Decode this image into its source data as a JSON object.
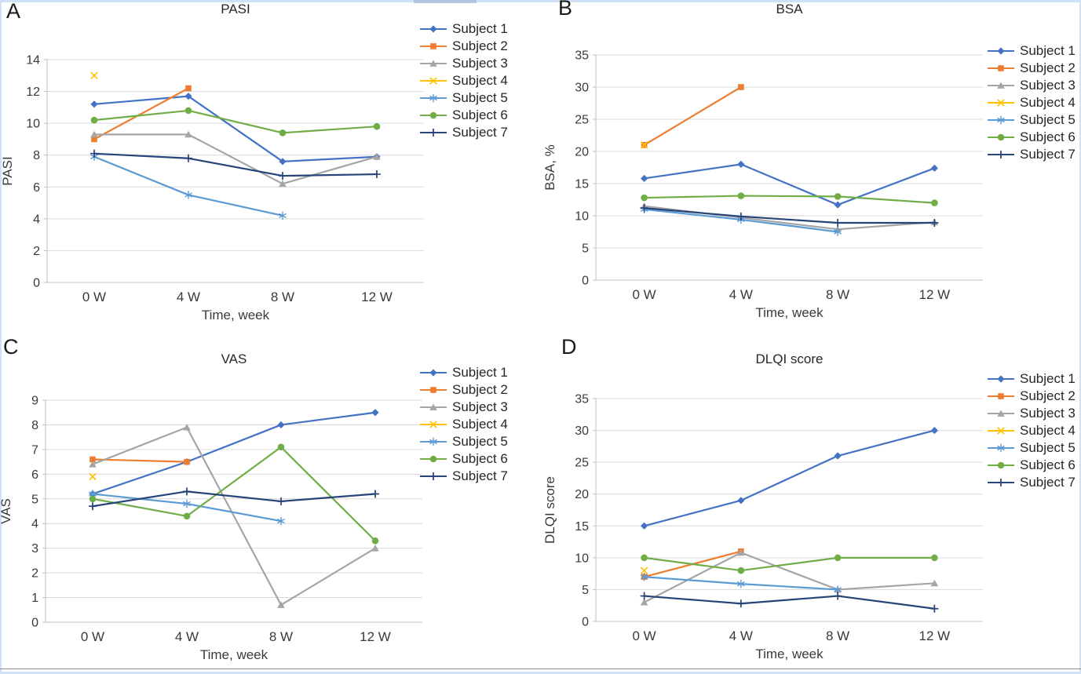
{
  "style": {
    "grid_color": "#d9d9d9",
    "axis_color": "#bfbfbf",
    "tick_color": "#3a3a3a",
    "text_color": "#262626",
    "frame_color": "#cfe1f5",
    "bottom_rule_color": "#8c8c8c",
    "series": [
      {
        "name": "Subject 1",
        "color": "#4472C4",
        "marker": "diamond"
      },
      {
        "name": "Subject 2",
        "color": "#ED7D31",
        "marker": "square"
      },
      {
        "name": "Subject 3",
        "color": "#A5A5A5",
        "marker": "triangle"
      },
      {
        "name": "Subject 4",
        "color": "#FFC000",
        "marker": "x"
      },
      {
        "name": "Subject 5",
        "color": "#5B9BD5",
        "marker": "asterisk"
      },
      {
        "name": "Subject 6",
        "color": "#70AD47",
        "marker": "circle"
      },
      {
        "name": "Subject 7",
        "color": "#264478",
        "marker": "plus"
      }
    ]
  },
  "chart_data": [
    {
      "type": "line",
      "letter": "A",
      "title": "PASI",
      "ylabel": "PASI",
      "xlabel": "Time, week",
      "ylim": [
        0,
        14
      ],
      "ystep": 2,
      "grid": true,
      "legend_position": "right",
      "categories": [
        "0 W",
        "4 W",
        "8 W",
        "12 W"
      ],
      "series": [
        {
          "name": "Subject 1",
          "values": [
            11.2,
            11.7,
            7.6,
            7.9
          ]
        },
        {
          "name": "Subject 2",
          "values": [
            9.0,
            12.2,
            null,
            null
          ]
        },
        {
          "name": "Subject 3",
          "values": [
            9.3,
            9.3,
            6.2,
            7.9
          ]
        },
        {
          "name": "Subject 4",
          "values": [
            13.0,
            null,
            null,
            null
          ]
        },
        {
          "name": "Subject 5",
          "values": [
            7.9,
            5.5,
            4.2,
            null
          ]
        },
        {
          "name": "Subject 6",
          "values": [
            10.2,
            10.8,
            9.4,
            9.8
          ]
        },
        {
          "name": "Subject 7",
          "values": [
            8.1,
            7.8,
            6.7,
            6.8
          ]
        }
      ]
    },
    {
      "type": "line",
      "letter": "B",
      "title": "BSA",
      "ylabel": "BSA, %",
      "xlabel": "Time, week",
      "ylim": [
        0,
        35
      ],
      "ystep": 5,
      "grid": true,
      "legend_position": "right",
      "categories": [
        "0 W",
        "4 W",
        "8 W",
        "12 W"
      ],
      "series": [
        {
          "name": "Subject 1",
          "values": [
            15.8,
            18.0,
            11.7,
            17.4
          ]
        },
        {
          "name": "Subject 2",
          "values": [
            21.0,
            30.0,
            null,
            null
          ]
        },
        {
          "name": "Subject 3",
          "values": [
            11.5,
            9.7,
            7.9,
            9.0
          ]
        },
        {
          "name": "Subject 4",
          "values": [
            21.0,
            null,
            null,
            null
          ]
        },
        {
          "name": "Subject 5",
          "values": [
            11.0,
            9.4,
            7.5,
            null
          ]
        },
        {
          "name": "Subject 6",
          "values": [
            12.8,
            13.1,
            13.0,
            12.0
          ]
        },
        {
          "name": "Subject 7",
          "values": [
            11.2,
            9.9,
            8.9,
            8.9
          ]
        }
      ]
    },
    {
      "type": "line",
      "letter": "C",
      "title": "VAS",
      "ylabel": "VAS",
      "xlabel": "Time, week",
      "ylim": [
        0,
        9
      ],
      "ystep": 1,
      "grid": true,
      "legend_position": "right",
      "categories": [
        "0 W",
        "4 W",
        "8 W",
        "12 W"
      ],
      "series": [
        {
          "name": "Subject 1",
          "values": [
            5.2,
            6.5,
            8.0,
            8.5
          ]
        },
        {
          "name": "Subject 2",
          "values": [
            6.6,
            6.5,
            null,
            null
          ]
        },
        {
          "name": "Subject 3",
          "values": [
            6.4,
            7.9,
            0.7,
            3.0
          ]
        },
        {
          "name": "Subject 4",
          "values": [
            5.9,
            null,
            null,
            null
          ]
        },
        {
          "name": "Subject 5",
          "values": [
            5.2,
            4.8,
            4.1,
            null
          ]
        },
        {
          "name": "Subject 6",
          "values": [
            5.0,
            4.3,
            7.1,
            3.3
          ]
        },
        {
          "name": "Subject 7",
          "values": [
            4.7,
            5.3,
            4.9,
            5.2
          ]
        }
      ]
    },
    {
      "type": "line",
      "letter": "D",
      "title": "DLQI score",
      "ylabel": "DLQI score",
      "xlabel": "Time, week",
      "ylim": [
        0,
        35
      ],
      "ystep": 5,
      "grid": true,
      "legend_position": "right",
      "categories": [
        "0 W",
        "4 W",
        "8 W",
        "12 W"
      ],
      "series": [
        {
          "name": "Subject 1",
          "values": [
            15.0,
            19.0,
            26.0,
            30.0
          ]
        },
        {
          "name": "Subject 2",
          "values": [
            7.0,
            11.0,
            null,
            null
          ]
        },
        {
          "name": "Subject 3",
          "values": [
            3.0,
            10.8,
            5.0,
            6.0
          ]
        },
        {
          "name": "Subject 4",
          "values": [
            8.0,
            null,
            null,
            null
          ]
        },
        {
          "name": "Subject 5",
          "values": [
            7.0,
            5.9,
            5.0,
            null
          ]
        },
        {
          "name": "Subject 6",
          "values": [
            10.0,
            8.0,
            10.0,
            10.0
          ]
        },
        {
          "name": "Subject 7",
          "values": [
            4.0,
            2.8,
            4.0,
            2.0
          ]
        }
      ]
    }
  ]
}
